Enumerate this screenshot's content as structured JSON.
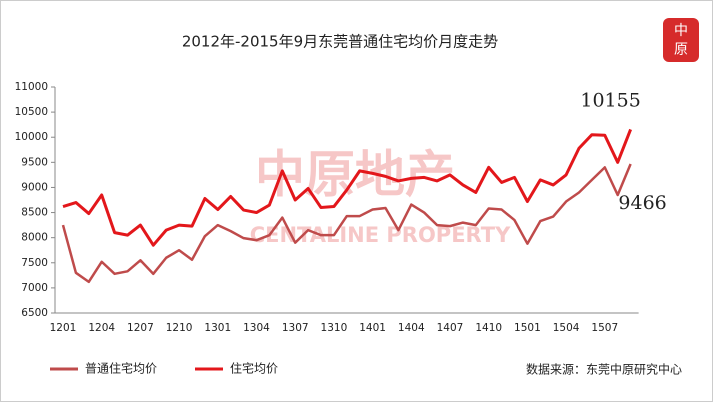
{
  "chart_data": {
    "type": "line",
    "title": "2012年-2015年9月东莞普通住宅均价月度走势",
    "categories": [
      "1201",
      null,
      null,
      "1204",
      null,
      null,
      "1207",
      null,
      null,
      "1210",
      null,
      null,
      "1301",
      null,
      null,
      "1304",
      null,
      null,
      "1307",
      null,
      null,
      "1310",
      null,
      null,
      "1401",
      null,
      null,
      "1404",
      null,
      null,
      "1407",
      null,
      null,
      "1410",
      null,
      null,
      "1501",
      null,
      null,
      "1504",
      null,
      null,
      "1507",
      null,
      null
    ],
    "series": [
      {
        "name": "普通住宅均价",
        "color": "#bf4b4b",
        "values": [
          8250,
          7300,
          7120,
          7520,
          7280,
          7330,
          7550,
          7280,
          7600,
          7750,
          7560,
          8030,
          8250,
          8130,
          7990,
          7950,
          8050,
          8400,
          7900,
          8150,
          8050,
          8050,
          8430,
          8430,
          8560,
          8590,
          8150,
          8660,
          8500,
          8250,
          8230,
          8300,
          8250,
          8580,
          8560,
          8350,
          7880,
          8330,
          8420,
          8720,
          8900,
          9150,
          9400,
          8850,
          9466
        ]
      },
      {
        "name": "住宅均价",
        "color": "#e3171b",
        "values": [
          8620,
          8700,
          8480,
          8850,
          8100,
          8050,
          8250,
          7850,
          8150,
          8250,
          8230,
          8780,
          8560,
          8820,
          8550,
          8500,
          8650,
          9330,
          8750,
          8980,
          8600,
          8620,
          8950,
          9330,
          9280,
          9220,
          9130,
          9180,
          9200,
          9130,
          9250,
          9050,
          8900,
          9400,
          9100,
          9200,
          8720,
          9150,
          9050,
          9250,
          9780,
          10050,
          10040,
          9500,
          10155
        ]
      }
    ],
    "ylim": [
      6500,
      11000
    ],
    "yticks": [
      6500,
      7000,
      7500,
      8000,
      8500,
      9000,
      9500,
      10000,
      10500,
      11000
    ],
    "annotations": [
      "10155",
      "9466"
    ],
    "source": "数据来源：东莞中原研究中心",
    "watermark": [
      "中原地产",
      "CENTALINE PROPERTY"
    ],
    "logo": [
      "中",
      "原"
    ]
  }
}
